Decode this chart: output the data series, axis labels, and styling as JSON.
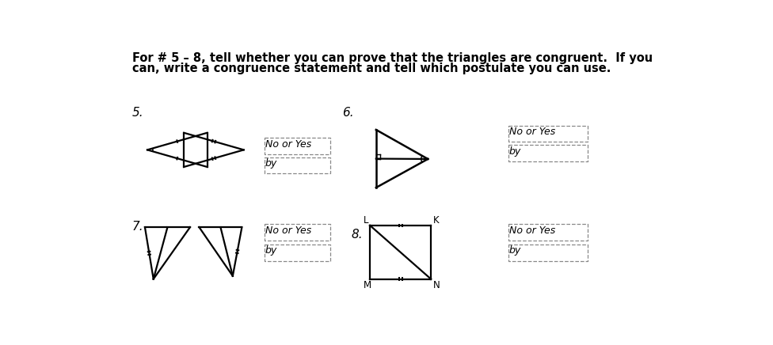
{
  "title_line1": "For # 5 – 8, tell whether you can prove that the triangles are congruent.  If you",
  "title_line2": "can, write a congruence statement and tell which postulate you can use.",
  "label5": "5.",
  "label6": "6.",
  "label7": "7.",
  "label8": "8.",
  "no_or_yes": "No or Yes",
  "by": "by",
  "bg_color": "#ffffff",
  "text_color": "#000000",
  "dash_color": "#888888",
  "lw": 1.6,
  "font_size_title": 10.5,
  "font_size_label": 11,
  "font_size_text": 9
}
